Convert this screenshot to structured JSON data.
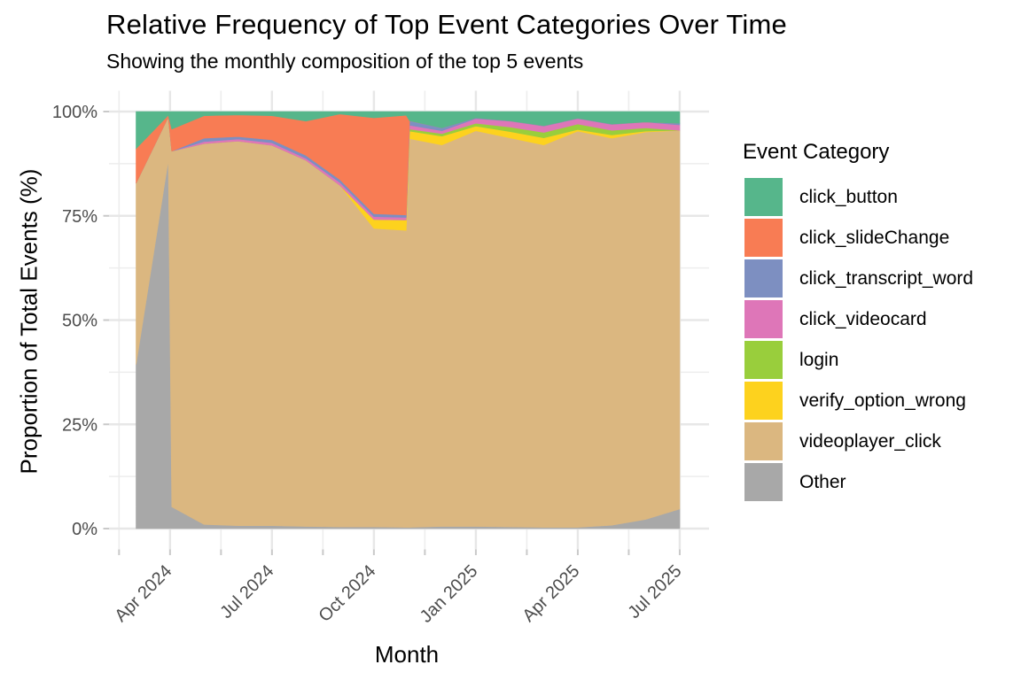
{
  "title": "Relative Frequency of Top Event Categories Over Time",
  "subtitle": "Showing the monthly composition of the top 5 events",
  "x_axis": {
    "label": "Month",
    "major_ticks": [
      {
        "label": "Apr 2024",
        "month_offset": 1
      },
      {
        "label": "Jul 2024",
        "month_offset": 4
      },
      {
        "label": "Oct 2024",
        "month_offset": 7
      },
      {
        "label": "Jan 2025",
        "month_offset": 10
      },
      {
        "label": "Apr 2025",
        "month_offset": 13
      },
      {
        "label": "Jul 2025",
        "month_offset": 16
      }
    ],
    "minor_tick_offsets": [
      -0.5,
      2.5,
      5.5,
      8.5,
      11.5,
      14.5
    ]
  },
  "y_axis": {
    "label": "Proportion of Total Events (%)",
    "ticks": [
      {
        "label": "0%",
        "value": 0
      },
      {
        "label": "25%",
        "value": 25
      },
      {
        "label": "50%",
        "value": 50
      },
      {
        "label": "75%",
        "value": 75
      },
      {
        "label": "100%",
        "value": 100
      }
    ],
    "minor_values": [
      12.5,
      37.5,
      62.5,
      87.5
    ]
  },
  "legend": {
    "title": "Event Category",
    "items": [
      {
        "label": "click_button",
        "color": "#56B68B"
      },
      {
        "label": "click_slideChange",
        "color": "#F87C54"
      },
      {
        "label": "click_transcript_word",
        "color": "#7D8FC1"
      },
      {
        "label": "click_videocard",
        "color": "#DE76B8"
      },
      {
        "label": "login",
        "color": "#99CE3C"
      },
      {
        "label": "verify_option_wrong",
        "color": "#FDD21E"
      },
      {
        "label": "videoplayer_click",
        "color": "#DBB780"
      },
      {
        "label": "Other",
        "color": "#A8A8A8"
      }
    ]
  },
  "chart_data": {
    "type": "area",
    "stacking": "percent",
    "ylim": [
      0,
      100
    ],
    "grid": true,
    "legend_position": "right",
    "stack_order_note": "listed top-to-bottom; Other is the bottom band, click_button the top band",
    "x_labels": [
      "Mar 2024",
      "Apr 2024",
      "Apr 2024 (step)",
      "May 2024",
      "Jun 2024",
      "Jul 2024",
      "Aug 2024",
      "Sep 2024",
      "Oct 2024",
      "Nov 2024",
      "Nov 2024 (step)",
      "Dec 2024",
      "Jan 2025",
      "Feb 2025",
      "Mar 2025",
      "Apr 2025",
      "May 2025",
      "Jun 2025",
      "Jul 2025"
    ],
    "x_offsets_months": [
      0,
      0.95,
      1.05,
      2,
      3,
      4,
      5,
      6,
      7,
      7.95,
      8.05,
      9,
      10,
      11,
      12,
      13,
      14,
      15,
      16
    ],
    "series": [
      {
        "name": "click_button",
        "color": "#56B68B",
        "values": [
          8.9,
          0.9,
          4.2,
          1.0,
          0.8,
          1.0,
          2.3,
          0.6,
          1.5,
          0.9,
          2.2,
          3.9,
          1.5,
          2.2,
          3.4,
          1.6,
          3.0,
          2.5,
          2.8
        ]
      },
      {
        "name": "click_slideChange",
        "color": "#F87C54",
        "values": [
          8.3,
          0.4,
          5.3,
          5.4,
          5.2,
          5.8,
          8.2,
          15.7,
          23.0,
          23.9,
          0,
          0,
          0,
          0,
          0,
          0,
          0,
          0,
          0
        ]
      },
      {
        "name": "click_transcript_word",
        "color": "#7D8FC1",
        "values": [
          0,
          0,
          0,
          0.8,
          0.6,
          0.7,
          0.7,
          0.7,
          0.7,
          0.6,
          1.1,
          0.7,
          0.2,
          0.1,
          0.1,
          0.1,
          0.1,
          0.0,
          0.4
        ]
      },
      {
        "name": "click_videocard",
        "color": "#DE76B8",
        "values": [
          0,
          0,
          0,
          0.5,
          0.5,
          0.6,
          0.5,
          0.7,
          0.7,
          0.6,
          0.9,
          0.7,
          1.1,
          1.4,
          1.5,
          1.3,
          1.4,
          1.4,
          1.3
        ]
      },
      {
        "name": "login",
        "color": "#99CE3C",
        "values": [
          0,
          0,
          0,
          0,
          0,
          0,
          0,
          0,
          0,
          0,
          0.5,
          0.6,
          0.7,
          1.1,
          1.3,
          1.3,
          1.1,
          0.8,
          0
        ]
      },
      {
        "name": "verify_option_wrong",
        "color": "#FDD21E",
        "values": [
          0,
          0,
          0,
          0,
          0,
          0,
          0,
          0,
          2.1,
          2.5,
          1.8,
          2.1,
          1.1,
          1.5,
          1.7,
          0.4,
          0.8,
          0.2,
          0
        ]
      },
      {
        "name": "videoplayer_click",
        "color": "#DBB780",
        "values": [
          43.5,
          10.4,
          85.3,
          91.3,
          92.2,
          91.2,
          87.8,
          81.9,
          71.6,
          71.2,
          93.2,
          91.5,
          94.9,
          93.3,
          91.7,
          95.0,
          92.8,
          92.9,
          90.8
        ]
      },
      {
        "name": "Other",
        "color": "#A8A8A8",
        "values": [
          39.3,
          88.3,
          5.2,
          1.0,
          0.7,
          0.7,
          0.5,
          0.4,
          0.4,
          0.3,
          0.3,
          0.5,
          0.5,
          0.4,
          0.3,
          0.3,
          0.8,
          2.2,
          4.7
        ]
      }
    ]
  }
}
